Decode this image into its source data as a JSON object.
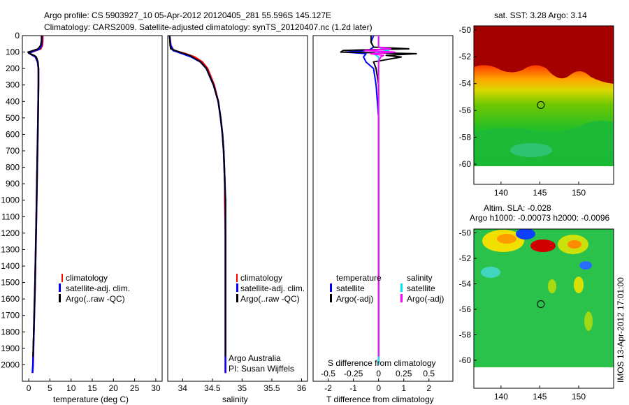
{
  "header": {
    "line1": "Argo profile: CS 5903927_10 05-Apr-2012 20120405_281 55.596S 145.127E",
    "line2": "Climatology: CARS2009. Satellite-adjusted climatology: synTS_20120407.nc (1.2d later)"
  },
  "colors": {
    "climatology": "#ff0000",
    "satellite": "#0000ff",
    "argo": "#000000",
    "sal_satellite": "#00e5ee",
    "sal_argo": "#ff00ff"
  },
  "credit": {
    "line1": "Argo Australia",
    "line2": "PI: Susan Wijffels"
  },
  "stamp": "IMOS 13-Apr-2012 17:01:00",
  "chart_data": [
    {
      "type": "line",
      "name": "temperature-profile",
      "xlabel": "temperature (deg C)",
      "xlim": [
        -1.5,
        31.5
      ],
      "xticks": [
        0,
        5,
        10,
        15,
        20,
        25,
        30
      ],
      "ylim": [
        0,
        2100
      ],
      "yticks": [
        0,
        100,
        200,
        300,
        400,
        500,
        600,
        700,
        800,
        900,
        1000,
        1100,
        1200,
        1300,
        1400,
        1500,
        1600,
        1700,
        1800,
        1900,
        2000
      ],
      "y_reversed": true,
      "legend": [
        "climatology",
        "satellite-adj. clim.",
        "Argo(..raw -QC)"
      ],
      "series": [
        {
          "name": "climatology",
          "y": [
            0,
            30,
            60,
            80,
            95,
            105,
            115,
            130,
            160,
            200,
            300,
            500,
            800,
            1100,
            1500,
            2000,
            2050
          ],
          "x": [
            3.3,
            3.3,
            3.2,
            2.8,
            1.2,
            0.1,
            0.6,
            1.6,
            2.1,
            2.3,
            2.3,
            2.2,
            2.0,
            1.8,
            1.5,
            1.0,
            0.9
          ]
        },
        {
          "name": "satellite-adj. clim.",
          "y": [
            0,
            30,
            60,
            80,
            95,
            105,
            115,
            130,
            160,
            200,
            300,
            500,
            800,
            1100,
            1500,
            2000,
            2050
          ],
          "x": [
            3.1,
            3.1,
            3.0,
            2.6,
            1.0,
            0.0,
            0.7,
            1.6,
            2.1,
            2.3,
            2.3,
            2.2,
            2.0,
            1.8,
            1.5,
            1.0,
            0.9
          ]
        },
        {
          "name": "Argo(..raw -QC)",
          "y": [
            0,
            30,
            60,
            80,
            95,
            100,
            110,
            120,
            130,
            160,
            200,
            300,
            500,
            800,
            1100,
            1500,
            1950
          ],
          "x": [
            3.0,
            3.0,
            2.8,
            2.2,
            0.5,
            -0.2,
            0.3,
            1.3,
            1.8,
            2.2,
            2.3,
            2.3,
            2.2,
            2.0,
            1.8,
            1.5,
            1.0
          ]
        }
      ]
    },
    {
      "type": "line",
      "name": "salinity-profile",
      "xlabel": "salinity",
      "xlim": [
        33.75,
        36.1
      ],
      "xticks": [
        34,
        34.5,
        35,
        35.5,
        36
      ],
      "ylim": [
        0,
        2100
      ],
      "y_reversed": true,
      "legend": [
        "climatology",
        "satellite-adj. clim.",
        "Argo(..raw -QC)"
      ],
      "series": [
        {
          "name": "climatology",
          "y": [
            0,
            60,
            90,
            110,
            130,
            160,
            200,
            300,
            400,
            500,
            600,
            700,
            800,
            900,
            1000,
            1200,
            1500,
            1800,
            2000,
            2050
          ],
          "x": [
            33.78,
            33.8,
            33.85,
            34.05,
            34.2,
            34.33,
            34.42,
            34.53,
            34.6,
            34.64,
            34.67,
            34.69,
            34.7,
            34.71,
            34.71,
            34.72,
            34.72,
            34.72,
            34.72,
            34.72
          ]
        },
        {
          "name": "satellite-adj. clim.",
          "y": [
            0,
            60,
            90,
            110,
            130,
            160,
            200,
            300,
            400,
            500,
            600,
            700,
            800,
            900,
            1000,
            1200,
            1500,
            1800,
            2000,
            2050
          ],
          "x": [
            33.78,
            33.8,
            33.84,
            34.0,
            34.15,
            34.3,
            34.4,
            34.52,
            34.6,
            34.64,
            34.67,
            34.69,
            34.7,
            34.71,
            34.72,
            34.72,
            34.72,
            34.72,
            34.72,
            34.72
          ]
        },
        {
          "name": "Argo(..raw -QC)",
          "y": [
            0,
            60,
            80,
            100,
            120,
            160,
            200,
            300,
            400,
            500,
            600,
            700,
            800,
            900,
            1000,
            1200,
            1500,
            1950
          ],
          "x": [
            33.78,
            33.79,
            33.8,
            33.95,
            34.12,
            34.3,
            34.4,
            34.52,
            34.6,
            34.64,
            34.67,
            34.69,
            34.7,
            34.71,
            34.72,
            34.72,
            34.72,
            34.72
          ]
        }
      ]
    },
    {
      "type": "line",
      "name": "difference-profile",
      "xlabel": "T difference from climatology",
      "xticks": [
        -2,
        -1,
        0,
        1,
        2
      ],
      "xlim": [
        -2.6,
        2.95
      ],
      "top_axis_label": "S difference from climatology",
      "top_xticks_labels": [
        "-0.5",
        "-0.25",
        "0",
        "0.25",
        "0.5"
      ],
      "ylim": [
        0,
        2100
      ],
      "y_reversed": true,
      "legend_title_left": "temperature",
      "legend_title_right": "salinity",
      "legend": [
        "satellite",
        "Argo(-adj)",
        "satellite",
        "Argo(-adj)"
      ],
      "series": [
        {
          "name": "T satellite",
          "y": [
            0,
            40,
            70,
            90,
            100,
            110,
            130,
            160,
            200,
            300,
            500,
            800,
            1200,
            1600,
            2000
          ],
          "x": [
            -0.2,
            -0.3,
            -0.2,
            -0.4,
            -1.3,
            -0.5,
            -0.6,
            -0.5,
            -0.2,
            -0.1,
            0,
            0,
            0,
            0,
            0
          ]
        },
        {
          "name": "T Argo(-adj)",
          "y": [
            0,
            40,
            70,
            80,
            90,
            100,
            110,
            120,
            130,
            160,
            200,
            300,
            500,
            800,
            1200,
            1600,
            1950
          ],
          "x": [
            -0.3,
            -0.3,
            -0.2,
            1.2,
            -1.4,
            -1.5,
            1.5,
            0.3,
            0.9,
            -0.2,
            -0.1,
            0,
            0,
            0,
            0,
            0,
            0
          ]
        },
        {
          "name": "S satellite",
          "y": [
            0,
            40,
            70,
            90,
            100,
            110,
            130,
            160,
            200,
            300,
            500,
            800,
            1200,
            1600,
            2000
          ],
          "x": [
            0,
            0,
            0,
            0.1,
            0,
            -0.05,
            0,
            0,
            0,
            0,
            0,
            0,
            0,
            0,
            0
          ]
        },
        {
          "name": "S Argo(-adj)",
          "y": [
            0,
            40,
            70,
            80,
            90,
            100,
            110,
            120,
            130,
            160,
            200,
            300,
            800,
            1950
          ],
          "x": [
            0,
            0,
            0,
            0.12,
            -0.14,
            0.16,
            -0.08,
            0.05,
            0.02,
            0,
            0,
            0,
            0,
            0
          ]
        }
      ]
    },
    {
      "type": "heatmap",
      "name": "sst-map",
      "title": "sat. SST: 3.28 Argo: 3.14",
      "xticks": [
        140,
        145,
        150
      ],
      "xlim": [
        136.5,
        154.5
      ],
      "yticks": [
        -50,
        -52,
        -54,
        -56,
        -58,
        -60
      ],
      "ylim": [
        -61.5,
        -49.7
      ],
      "profile_marker": {
        "lon": 145.127,
        "lat": -55.596
      }
    },
    {
      "type": "heatmap",
      "name": "sla-map",
      "title": "Altim. SLA: -0.028",
      "subtitle": "Argo h1000: -0.00073 h2000: -0.0096",
      "xticks": [
        140,
        145,
        150
      ],
      "xlim": [
        136.5,
        154.5
      ],
      "yticks": [
        -50,
        -52,
        -54,
        -56,
        -58,
        -60
      ],
      "ylim": [
        -62.2,
        -49.7
      ],
      "profile_marker": {
        "lon": 145.127,
        "lat": -55.596
      }
    }
  ]
}
